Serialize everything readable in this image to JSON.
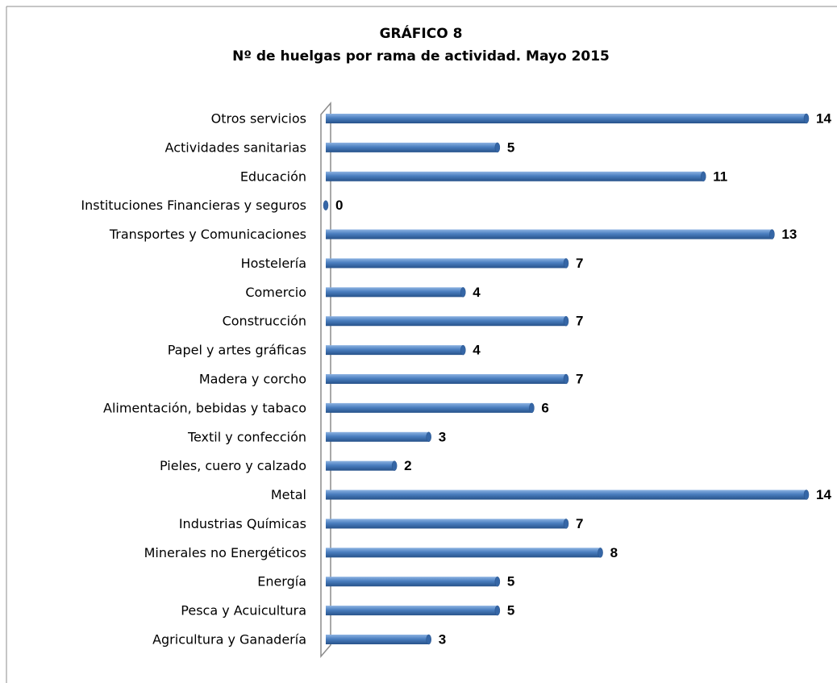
{
  "chart_data": {
    "type": "bar",
    "orientation": "horizontal",
    "title": "GRÁFICO 8",
    "subtitle": "Nº de huelgas por rama de actividad. Mayo 2015",
    "categories": [
      "Otros servicios",
      "Actividades sanitarias",
      "Educación",
      "Instituciones Financieras y seguros",
      "Transportes y Comunicaciones",
      "Hostelería",
      "Comercio",
      "Construcción",
      "Papel y artes gráficas",
      "Madera y corcho",
      "Alimentación, bebidas y tabaco",
      "Textil y confección",
      "Pieles, cuero y calzado",
      "Metal",
      "Industrias Químicas",
      "Minerales no Energéticos",
      "Energía",
      "Pesca y Acuicultura",
      "Agricultura y Ganadería"
    ],
    "values": [
      14,
      5,
      11,
      0,
      13,
      7,
      4,
      7,
      4,
      7,
      6,
      3,
      2,
      14,
      7,
      8,
      5,
      5,
      3
    ],
    "color": "#4a7ebf",
    "xlim": [
      0,
      14
    ]
  }
}
